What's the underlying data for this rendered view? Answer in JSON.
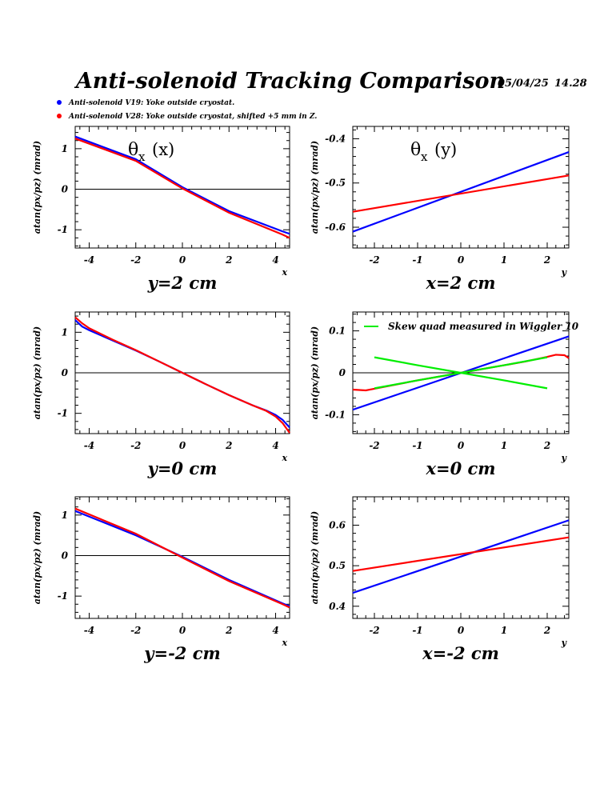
{
  "header": {
    "title": "Anti-solenoid Tracking Comparison",
    "date": "05/04/25",
    "time": "14.28"
  },
  "legend": [
    {
      "label": "Anti-solenoid V19: Yoke outside cryostat.",
      "color": "#0000ff"
    },
    {
      "label": "Anti-solenoid V28: Yoke outside cryostat, shifted +5 mm in Z.",
      "color": "#ff0000"
    }
  ],
  "panel_texts": {
    "ylabel": "atan(px/pz) (mrad)",
    "x_var": "x",
    "y_var": "y",
    "theta_x_of_x": "(x)",
    "theta_x_of_y": "(y)",
    "skew_legend": "Skew quad measured in Wiggler 10"
  },
  "colors": {
    "v19": "#0000ff",
    "v28": "#ff0000",
    "skew": "#00ee00"
  },
  "chart_data": [
    {
      "type": "line",
      "caption": "y=2 cm",
      "xlabel": "x",
      "ylabel": "atan(px/pz) (mrad)",
      "xlim": [
        -4.6,
        4.6
      ],
      "ylim": [
        -1.45,
        1.55
      ],
      "xticks": [
        -4,
        -2,
        0,
        2,
        4
      ],
      "xticklabels": [
        "-4",
        "-2",
        "0",
        "2",
        "4"
      ],
      "yticks": [
        -1,
        0,
        1
      ],
      "yticklabels": [
        "-1",
        "0",
        "1"
      ],
      "zero_line": true,
      "inset": "theta_x_of_x",
      "series": [
        {
          "key": "v19",
          "x": [
            -4.6,
            -2,
            0,
            2,
            4.3,
            4.6
          ],
          "y": [
            1.3,
            0.74,
            0.05,
            -0.54,
            -1.04,
            -1.1
          ]
        },
        {
          "key": "v28",
          "x": [
            -4.6,
            -2,
            0,
            2,
            4.3,
            4.6
          ],
          "y": [
            1.25,
            0.7,
            0.02,
            -0.58,
            -1.12,
            -1.2
          ]
        }
      ]
    },
    {
      "type": "line",
      "caption": "x=2 cm",
      "xlabel": "y",
      "ylabel": "atan(px/pz) (mrad)",
      "xlim": [
        -2.5,
        2.5
      ],
      "ylim": [
        -0.647,
        -0.372
      ],
      "xticks": [
        -2,
        -1,
        0,
        1,
        2
      ],
      "xticklabels": [
        "-2",
        "-1",
        "0",
        "1",
        "2"
      ],
      "yticks": [
        -0.6,
        -0.5,
        -0.4
      ],
      "yticklabels": [
        "-0.6",
        "-0.5",
        "-0.4"
      ],
      "zero_line": false,
      "inset": "theta_x_of_y",
      "series": [
        {
          "key": "v19",
          "x": [
            -2.5,
            2.5
          ],
          "y": [
            -0.61,
            -0.43
          ]
        },
        {
          "key": "v28",
          "x": [
            -2.5,
            2.5
          ],
          "y": [
            -0.565,
            -0.483
          ]
        }
      ]
    },
    {
      "type": "line",
      "caption": "y=0 cm",
      "xlabel": "x",
      "ylabel": "atan(px/pz) (mrad)",
      "xlim": [
        -4.6,
        4.6
      ],
      "ylim": [
        -1.5,
        1.5
      ],
      "xticks": [
        -4,
        -2,
        0,
        2,
        4
      ],
      "xticklabels": [
        "-4",
        "-2",
        "0",
        "2",
        "4"
      ],
      "yticks": [
        -1,
        0,
        1
      ],
      "yticklabels": [
        "-1",
        "0",
        "1"
      ],
      "zero_line": true,
      "inset": "",
      "series": [
        {
          "key": "v19",
          "x": [
            -4.6,
            -4.3,
            -4,
            -3,
            -2,
            -1,
            0,
            1,
            2,
            3,
            3.6,
            4,
            4.3,
            4.6
          ],
          "y": [
            1.3,
            1.14,
            1.05,
            0.8,
            0.55,
            0.28,
            0.0,
            -0.28,
            -0.55,
            -0.8,
            -0.93,
            -1.04,
            -1.16,
            -1.35
          ]
        },
        {
          "key": "v28",
          "x": [
            -4.6,
            -4.3,
            -4,
            -3,
            -2,
            -1,
            0,
            1,
            2,
            3,
            3.6,
            4,
            4.3,
            4.6
          ],
          "y": [
            1.37,
            1.22,
            1.1,
            0.82,
            0.56,
            0.28,
            0.0,
            -0.28,
            -0.55,
            -0.8,
            -0.94,
            -1.08,
            -1.24,
            -1.48
          ]
        }
      ]
    },
    {
      "type": "line",
      "caption": "x=0 cm",
      "xlabel": "y",
      "ylabel": "atan(px/pz) (mrad)",
      "xlim": [
        -2.5,
        2.5
      ],
      "ylim": [
        -0.145,
        0.145
      ],
      "xticks": [
        -2,
        -1,
        0,
        1,
        2
      ],
      "xticklabels": [
        "-2",
        "-1",
        "0",
        "1",
        "2"
      ],
      "yticks": [
        -0.1,
        0,
        0.1
      ],
      "yticklabels": [
        "-0.1",
        "0",
        "0.1"
      ],
      "zero_line": true,
      "inset": "",
      "series": [
        {
          "key": "v19",
          "x": [
            -2.5,
            2.5
          ],
          "y": [
            -0.088,
            0.087
          ]
        },
        {
          "key": "v28",
          "x": [
            -2.5,
            -2.2,
            -2,
            -1,
            0,
            1,
            1.5,
            2,
            2.2,
            2.4,
            2.5
          ],
          "y": [
            -0.04,
            -0.042,
            -0.038,
            -0.018,
            0.0,
            0.018,
            0.027,
            0.038,
            0.043,
            0.042,
            0.035
          ]
        },
        {
          "key": "skew",
          "x": [
            -2,
            -1,
            0,
            1,
            2
          ],
          "y": [
            0.037,
            0.018,
            0.0,
            -0.018,
            -0.037
          ]
        },
        {
          "key": "skew",
          "x": [
            -2,
            -1,
            0,
            1,
            2
          ],
          "y": [
            -0.037,
            -0.018,
            0.0,
            0.018,
            0.037
          ]
        }
      ]
    },
    {
      "type": "line",
      "caption": "y=-2 cm",
      "xlabel": "x",
      "ylabel": "atan(px/pz) (mrad)",
      "xlim": [
        -4.6,
        4.6
      ],
      "ylim": [
        -1.55,
        1.45
      ],
      "xticks": [
        -4,
        -2,
        0,
        2,
        4
      ],
      "xticklabels": [
        "-4",
        "-2",
        "0",
        "2",
        "4"
      ],
      "yticks": [
        -1,
        0,
        1
      ],
      "yticklabels": [
        "-1",
        "0",
        "1"
      ],
      "zero_line": true,
      "inset": "",
      "series": [
        {
          "key": "v19",
          "x": [
            -4.6,
            -2,
            0,
            2,
            4.3,
            4.6
          ],
          "y": [
            1.1,
            0.5,
            -0.03,
            -0.6,
            -1.18,
            -1.25
          ]
        },
        {
          "key": "v28",
          "x": [
            -4.6,
            -2,
            0,
            2,
            4.3,
            4.6
          ],
          "y": [
            1.16,
            0.54,
            -0.05,
            -0.63,
            -1.2,
            -1.28
          ]
        }
      ]
    },
    {
      "type": "line",
      "caption": "x=-2 cm",
      "xlabel": "y",
      "ylabel": "atan(px/pz) (mrad)",
      "xlim": [
        -2.5,
        2.5
      ],
      "ylim": [
        0.37,
        0.67
      ],
      "xticks": [
        -2,
        -1,
        0,
        1,
        2
      ],
      "xticklabels": [
        "-2",
        "-1",
        "0",
        "1",
        "2"
      ],
      "yticks": [
        0.4,
        0.5,
        0.6
      ],
      "yticklabels": [
        "0.4",
        "0.5",
        "0.6"
      ],
      "zero_line": false,
      "inset": "",
      "series": [
        {
          "key": "v19",
          "x": [
            -2.5,
            2.5
          ],
          "y": [
            0.433,
            0.612
          ]
        },
        {
          "key": "v28",
          "x": [
            -2.5,
            2.5
          ],
          "y": [
            0.487,
            0.57
          ]
        }
      ]
    }
  ]
}
